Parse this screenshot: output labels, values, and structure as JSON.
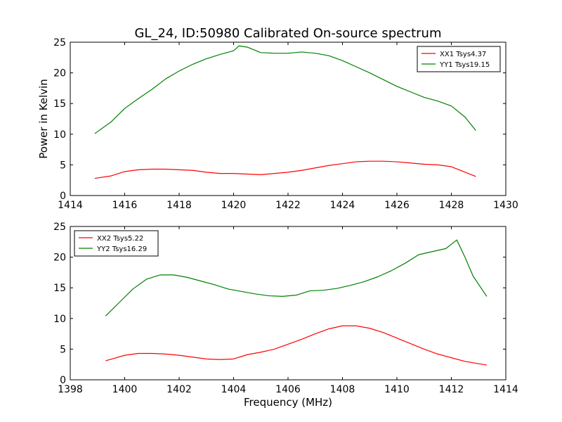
{
  "figure": {
    "title": "GL_24, ID:50980 Calibrated On-source spectrum",
    "ylabel": "Power in Kelvin",
    "xlabel": "Frequency (MHz)"
  },
  "chart_data": [
    {
      "type": "line",
      "xlim": [
        1414,
        1430
      ],
      "ylim": [
        0,
        25
      ],
      "xticks": [
        1414,
        1416,
        1418,
        1420,
        1422,
        1424,
        1426,
        1428,
        1430
      ],
      "yticks": [
        0,
        5,
        10,
        15,
        20,
        25
      ],
      "legend": "top-right",
      "grid": false,
      "series": [
        {
          "name": "XX1 Tsys4.37",
          "color": "#ff0000",
          "points": [
            [
              1414.9,
              2.8
            ],
            [
              1415.5,
              3.2
            ],
            [
              1416.0,
              3.9
            ],
            [
              1416.5,
              4.2
            ],
            [
              1417.0,
              4.3
            ],
            [
              1417.5,
              4.3
            ],
            [
              1418.0,
              4.2
            ],
            [
              1418.5,
              4.1
            ],
            [
              1419.0,
              3.8
            ],
            [
              1419.5,
              3.6
            ],
            [
              1420.0,
              3.6
            ],
            [
              1420.5,
              3.5
            ],
            [
              1421.0,
              3.4
            ],
            [
              1421.5,
              3.6
            ],
            [
              1422.0,
              3.8
            ],
            [
              1422.5,
              4.1
            ],
            [
              1423.0,
              4.5
            ],
            [
              1423.5,
              4.9
            ],
            [
              1424.0,
              5.2
            ],
            [
              1424.5,
              5.5
            ],
            [
              1425.0,
              5.6
            ],
            [
              1425.5,
              5.6
            ],
            [
              1426.0,
              5.5
            ],
            [
              1426.5,
              5.3
            ],
            [
              1427.0,
              5.1
            ],
            [
              1427.5,
              5.0
            ],
            [
              1428.0,
              4.7
            ],
            [
              1428.5,
              3.8
            ],
            [
              1428.9,
              3.1
            ]
          ]
        },
        {
          "name": "YY1 Tsys19.15",
          "color": "#008000",
          "points": [
            [
              1414.9,
              10.1
            ],
            [
              1415.5,
              12.0
            ],
            [
              1416.0,
              14.2
            ],
            [
              1416.5,
              15.8
            ],
            [
              1417.0,
              17.3
            ],
            [
              1417.5,
              19.0
            ],
            [
              1418.0,
              20.3
            ],
            [
              1418.5,
              21.4
            ],
            [
              1419.0,
              22.3
            ],
            [
              1419.5,
              23.0
            ],
            [
              1420.0,
              23.6
            ],
            [
              1420.2,
              24.4
            ],
            [
              1420.5,
              24.2
            ],
            [
              1421.0,
              23.3
            ],
            [
              1421.5,
              23.2
            ],
            [
              1422.0,
              23.2
            ],
            [
              1422.5,
              23.4
            ],
            [
              1423.0,
              23.2
            ],
            [
              1423.5,
              22.8
            ],
            [
              1424.0,
              22.0
            ],
            [
              1424.5,
              21.0
            ],
            [
              1425.0,
              20.0
            ],
            [
              1425.5,
              18.9
            ],
            [
              1426.0,
              17.8
            ],
            [
              1426.5,
              16.9
            ],
            [
              1427.0,
              16.0
            ],
            [
              1427.5,
              15.4
            ],
            [
              1428.0,
              14.6
            ],
            [
              1428.5,
              12.8
            ],
            [
              1428.9,
              10.6
            ]
          ]
        }
      ]
    },
    {
      "type": "line",
      "xlim": [
        1398,
        1414
      ],
      "ylim": [
        0,
        25
      ],
      "xticks": [
        1398,
        1400,
        1402,
        1404,
        1406,
        1408,
        1410,
        1412,
        1414
      ],
      "yticks": [
        0,
        5,
        10,
        15,
        20,
        25
      ],
      "legend": "top-left",
      "grid": false,
      "series": [
        {
          "name": "XX2 Tsys5.22",
          "color": "#ff0000",
          "points": [
            [
              1399.3,
              3.1
            ],
            [
              1400.0,
              4.0
            ],
            [
              1400.5,
              4.3
            ],
            [
              1401.0,
              4.3
            ],
            [
              1401.5,
              4.2
            ],
            [
              1402.0,
              4.0
            ],
            [
              1402.5,
              3.7
            ],
            [
              1403.0,
              3.4
            ],
            [
              1403.5,
              3.3
            ],
            [
              1404.0,
              3.4
            ],
            [
              1404.5,
              4.1
            ],
            [
              1405.0,
              4.5
            ],
            [
              1405.5,
              5.0
            ],
            [
              1406.0,
              5.8
            ],
            [
              1406.5,
              6.6
            ],
            [
              1407.0,
              7.5
            ],
            [
              1407.5,
              8.3
            ],
            [
              1408.0,
              8.8
            ],
            [
              1408.5,
              8.8
            ],
            [
              1409.0,
              8.4
            ],
            [
              1409.5,
              7.7
            ],
            [
              1410.0,
              6.8
            ],
            [
              1410.5,
              5.9
            ],
            [
              1411.0,
              5.0
            ],
            [
              1411.5,
              4.2
            ],
            [
              1412.0,
              3.6
            ],
            [
              1412.5,
              3.0
            ],
            [
              1413.3,
              2.4
            ]
          ]
        },
        {
          "name": "YY2 Tsys16.29",
          "color": "#008000",
          "points": [
            [
              1399.3,
              10.4
            ],
            [
              1399.8,
              12.6
            ],
            [
              1400.3,
              14.8
            ],
            [
              1400.8,
              16.4
            ],
            [
              1401.3,
              17.1
            ],
            [
              1401.8,
              17.1
            ],
            [
              1402.3,
              16.7
            ],
            [
              1402.8,
              16.1
            ],
            [
              1403.3,
              15.5
            ],
            [
              1403.8,
              14.8
            ],
            [
              1404.3,
              14.4
            ],
            [
              1404.8,
              14.0
            ],
            [
              1405.3,
              13.7
            ],
            [
              1405.8,
              13.6
            ],
            [
              1406.3,
              13.8
            ],
            [
              1406.8,
              14.5
            ],
            [
              1407.3,
              14.6
            ],
            [
              1407.8,
              14.9
            ],
            [
              1408.3,
              15.4
            ],
            [
              1408.8,
              16.0
            ],
            [
              1409.3,
              16.8
            ],
            [
              1409.8,
              17.8
            ],
            [
              1410.3,
              19.0
            ],
            [
              1410.8,
              20.4
            ],
            [
              1411.3,
              20.9
            ],
            [
              1411.8,
              21.4
            ],
            [
              1412.2,
              22.8
            ],
            [
              1412.5,
              20.0
            ],
            [
              1412.8,
              16.9
            ],
            [
              1413.3,
              13.6
            ]
          ]
        }
      ]
    }
  ]
}
